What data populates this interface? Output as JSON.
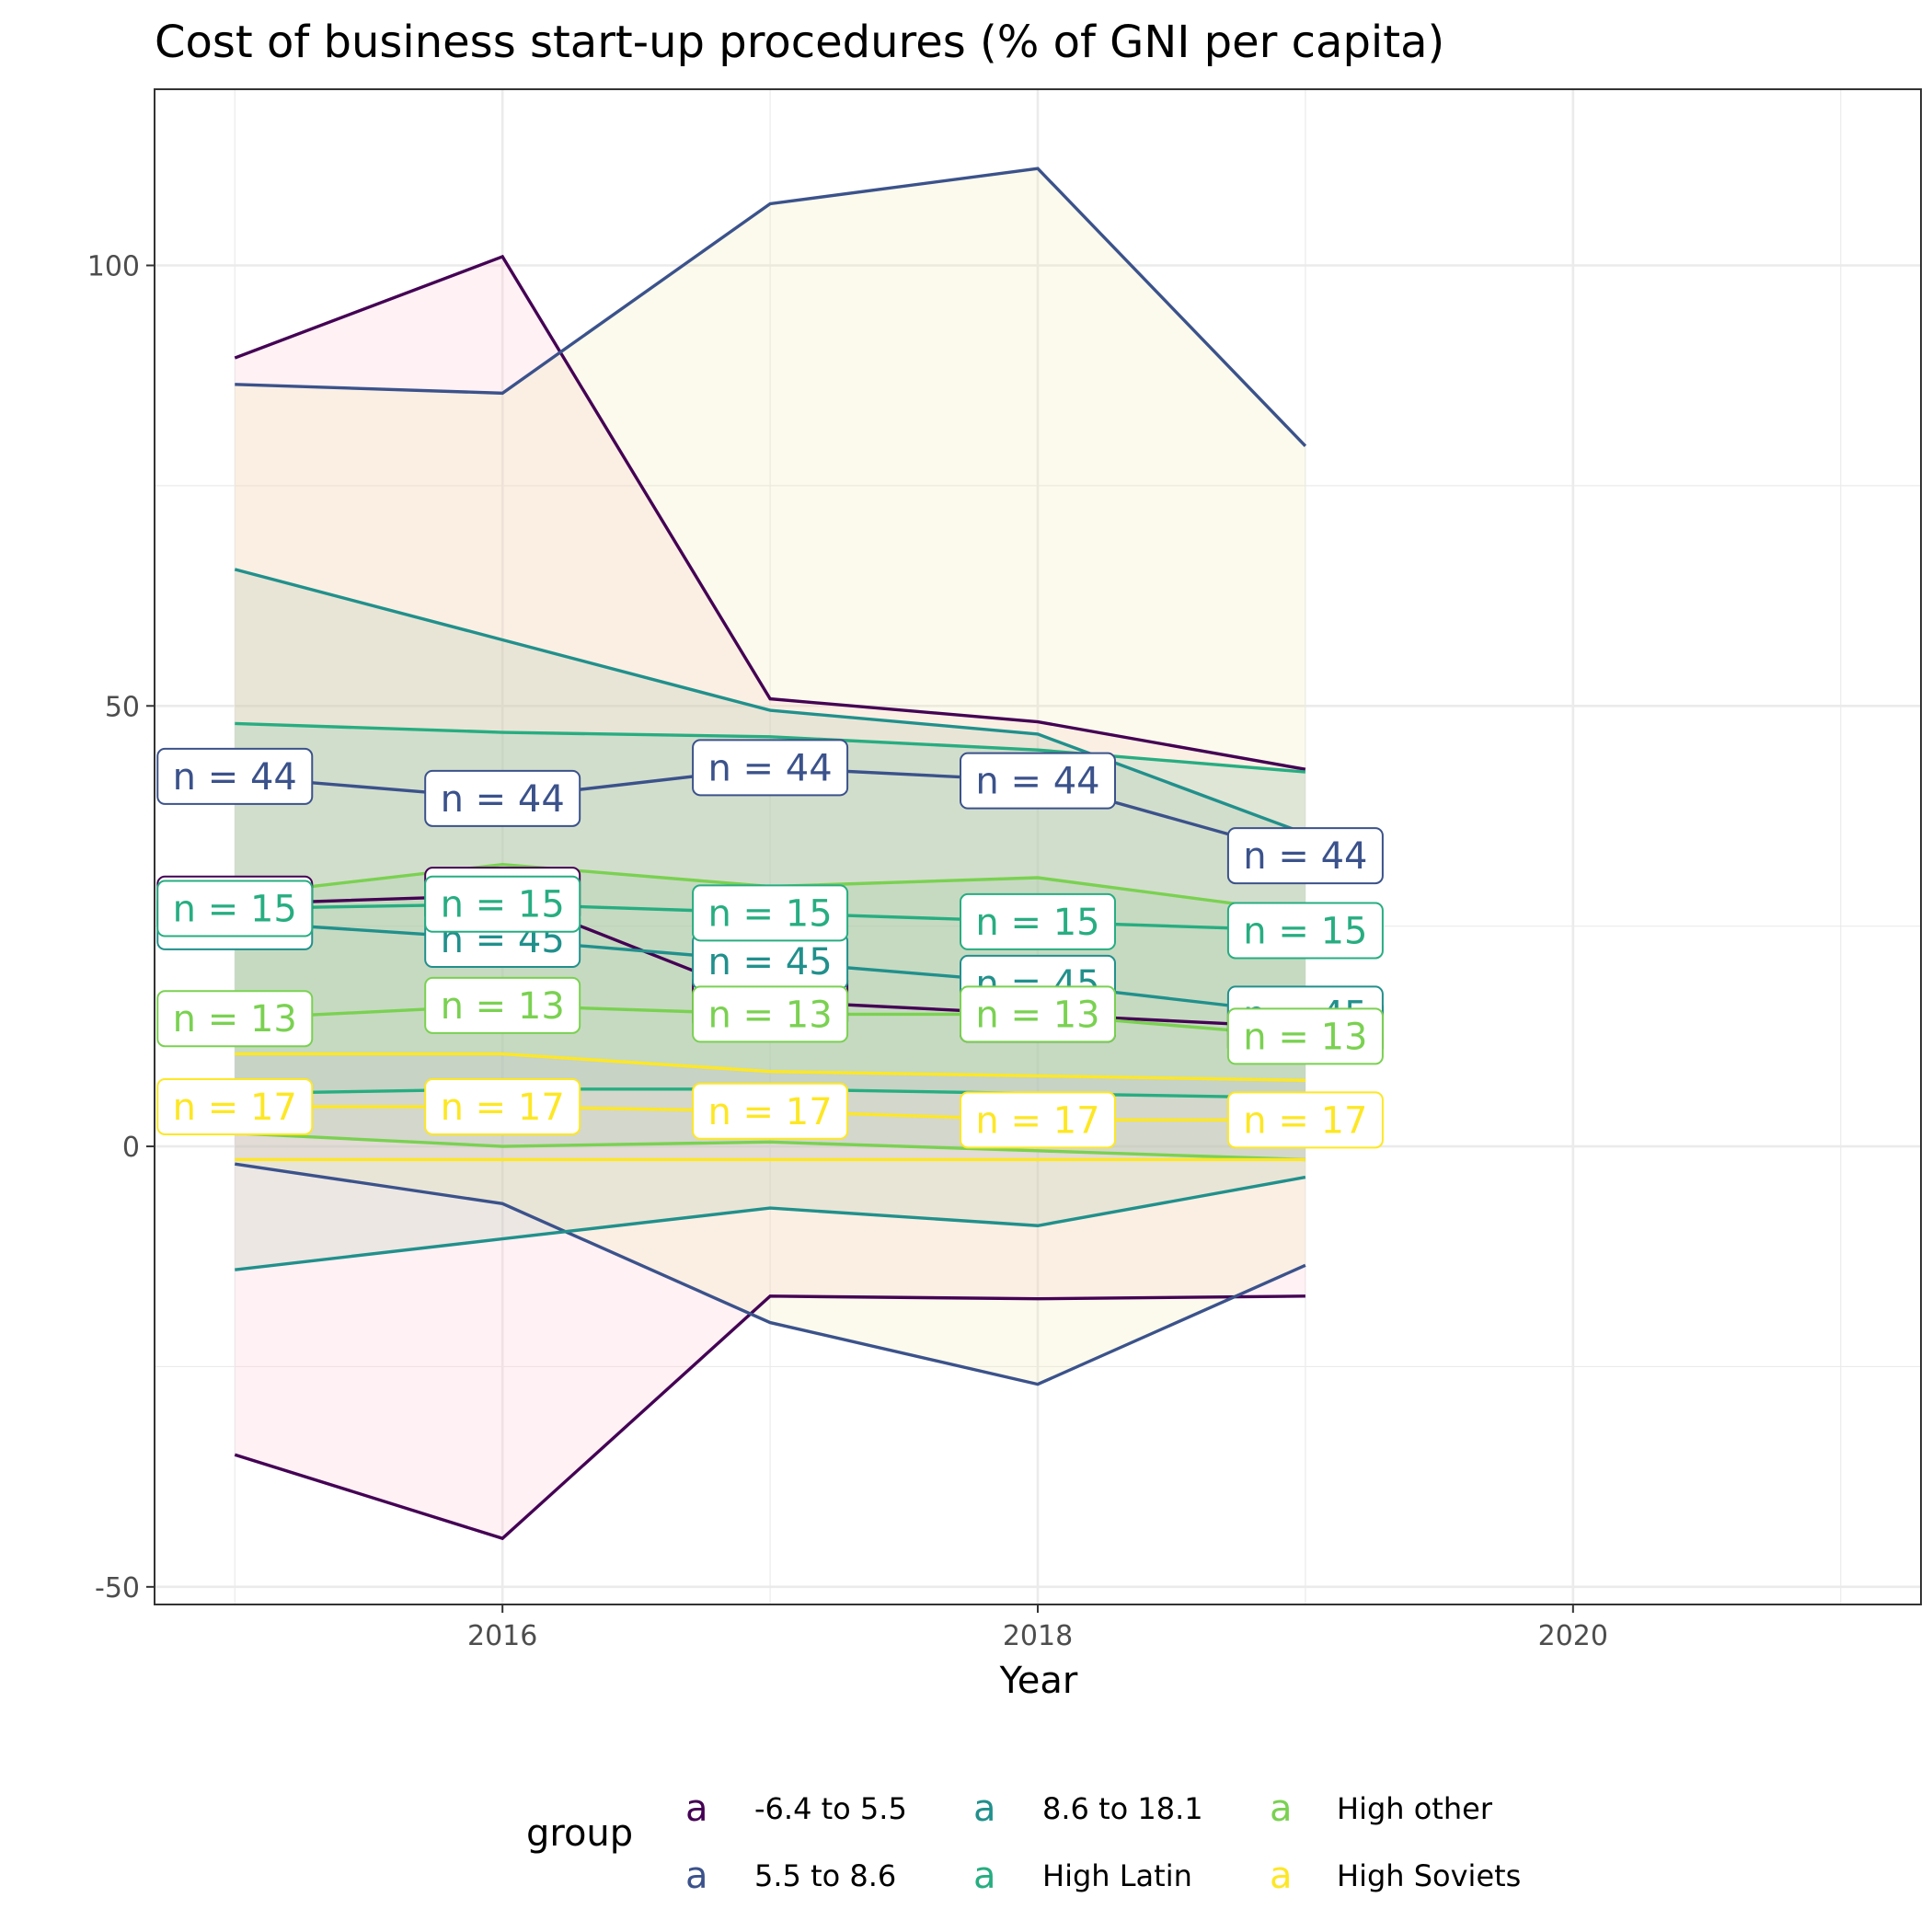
{
  "chart_data": {
    "type": "line",
    "title": "Cost of business start-up procedures (% of GNI per capita)",
    "xlabel": "Year",
    "ylabel": "",
    "xlim": [
      2014.7,
      2021.3
    ],
    "ylim": [
      -52,
      120
    ],
    "x_ticks": [
      2016,
      2018,
      2020
    ],
    "y_ticks": [
      -50,
      0,
      50,
      100
    ],
    "x": [
      2015,
      2016,
      2017,
      2018,
      2019
    ],
    "grid": true,
    "legend": {
      "title": "group",
      "position": "bottom",
      "key_glyph": "a"
    },
    "series": [
      {
        "name": "-6.4 to 5.5",
        "color": "#440154",
        "fill": "#FFC0CB",
        "mean": [
          27.5,
          28.5,
          16.5,
          15.0,
          13.5
        ],
        "lower": [
          -35.0,
          -44.5,
          -17.0,
          -17.3,
          -17.0
        ],
        "upper": [
          89.5,
          101.0,
          50.8,
          48.2,
          42.8
        ],
        "labels": [
          "n = 44",
          "n = 44",
          "n = 44",
          "n = 44",
          "n = 44"
        ],
        "label_color": "#440154"
      },
      {
        "name": "5.5 to 8.6",
        "color": "#3B528B",
        "fill": "#EEE8AA",
        "mean": [
          42.0,
          39.5,
          43.0,
          41.5,
          33.0
        ],
        "lower": [
          -2.0,
          -6.5,
          -20.0,
          -27.0,
          -13.5
        ],
        "upper": [
          86.5,
          85.5,
          107.0,
          111.0,
          79.5
        ],
        "labels": [
          "n = 44",
          "n = 44",
          "n = 44",
          "n = 44",
          "n = 44"
        ],
        "label_color": "#3B528B"
      },
      {
        "name": "8.6 to 18.1",
        "color": "#21908C",
        "fill": "#A9C6A9",
        "mean": [
          25.5,
          23.5,
          21.0,
          18.5,
          15.0
        ],
        "lower": [
          -14.0,
          -10.5,
          -7.0,
          -9.0,
          -3.5
        ],
        "upper": [
          65.5,
          57.5,
          49.5,
          46.8,
          35.5
        ],
        "labels": [
          "n = 45",
          "n = 45",
          "n = 45",
          "n = 45",
          "n = 45"
        ],
        "label_color": "#21908C"
      },
      {
        "name": "High Latin",
        "color": "#27AD81",
        "fill": "#7FC9A8",
        "mean": [
          27.0,
          27.5,
          26.5,
          25.5,
          24.5
        ],
        "lower": [
          6.0,
          6.5,
          6.5,
          6.0,
          5.5
        ],
        "upper": [
          48.0,
          47.0,
          46.5,
          45.0,
          42.5
        ],
        "labels": [
          "n = 15",
          "n = 15",
          "n = 15",
          "n = 15",
          "n = 15"
        ],
        "label_color": "#27AD81"
      },
      {
        "name": "High other",
        "color": "#7AD151",
        "fill": "#9CCB9C",
        "mean": [
          14.5,
          16.0,
          15.0,
          15.0,
          12.5
        ],
        "lower": [
          1.5,
          0.0,
          0.5,
          -0.5,
          -1.5
        ],
        "upper": [
          28.5,
          32.0,
          29.5,
          30.5,
          26.5
        ],
        "labels": [
          "n = 13",
          "n = 13",
          "n = 13",
          "n = 13",
          "n = 13"
        ],
        "label_color": "#7AD151"
      },
      {
        "name": "High Soviets",
        "color": "#FDE725",
        "fill": "#C8BCD8",
        "mean": [
          4.5,
          4.5,
          4.0,
          3.0,
          3.0
        ],
        "lower": [
          -1.5,
          -1.5,
          -1.5,
          -1.5,
          -1.5
        ],
        "upper": [
          10.5,
          10.5,
          8.5,
          8.0,
          7.5
        ],
        "labels": [
          "n = 17",
          "n = 17",
          "n = 17",
          "n = 17",
          "n = 17"
        ],
        "label_color": "#FDE725"
      }
    ]
  }
}
